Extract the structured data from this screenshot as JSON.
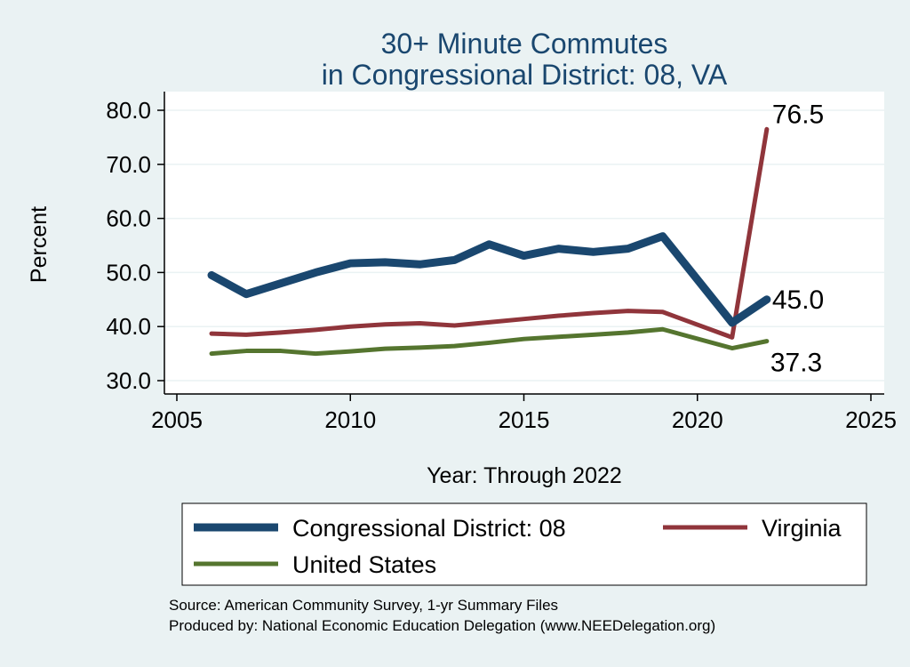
{
  "chart_data": {
    "type": "line",
    "title": [
      "30+ Minute Commutes",
      "in Congressional District:  08, VA"
    ],
    "xlabel": "Year: Through 2022",
    "ylabel": "Percent",
    "xlim": [
      2005,
      2025
    ],
    "ylim": [
      30,
      80
    ],
    "xticks": [
      "2005",
      "2010",
      "2015",
      "2020",
      "2025"
    ],
    "yticks": [
      "30.0",
      "40.0",
      "50.0",
      "60.0",
      "70.0",
      "80.0"
    ],
    "grid": true,
    "legend_position": "bottom",
    "series": [
      {
        "name": "Congressional District:  08",
        "color": "#1a476f",
        "x": [
          2006,
          2007,
          2008,
          2009,
          2010,
          2011,
          2012,
          2013,
          2014,
          2015,
          2016,
          2017,
          2018,
          2019,
          2021,
          2022
        ],
        "y": [
          49.5,
          46.0,
          48.0,
          50.0,
          51.7,
          51.9,
          51.5,
          52.3,
          55.2,
          53.1,
          54.4,
          53.8,
          54.4,
          56.7,
          40.7,
          45.0
        ],
        "end_label": "45.0"
      },
      {
        "name": "Virginia",
        "color": "#90353b",
        "x": [
          2006,
          2007,
          2008,
          2009,
          2010,
          2011,
          2012,
          2013,
          2014,
          2015,
          2016,
          2017,
          2018,
          2019,
          2021,
          2022
        ],
        "y": [
          38.7,
          38.5,
          38.9,
          39.4,
          40.0,
          40.4,
          40.6,
          40.2,
          40.8,
          41.4,
          42.0,
          42.5,
          42.9,
          42.7,
          38.0,
          76.5
        ],
        "end_label": "76.5"
      },
      {
        "name": "United States",
        "color": "#55752f",
        "x": [
          2006,
          2007,
          2008,
          2009,
          2010,
          2011,
          2012,
          2013,
          2014,
          2015,
          2016,
          2017,
          2018,
          2019,
          2021,
          2022
        ],
        "y": [
          35.0,
          35.5,
          35.5,
          35.0,
          35.4,
          35.9,
          36.1,
          36.4,
          37.0,
          37.7,
          38.1,
          38.5,
          38.9,
          39.5,
          36.0,
          37.3
        ],
        "end_label": "37.3"
      }
    ],
    "source": [
      "Source: American Community Survey, 1-yr Summary Files",
      "Produced by: National Economic Education Delegation (www.NEEDelegation.org)"
    ]
  }
}
